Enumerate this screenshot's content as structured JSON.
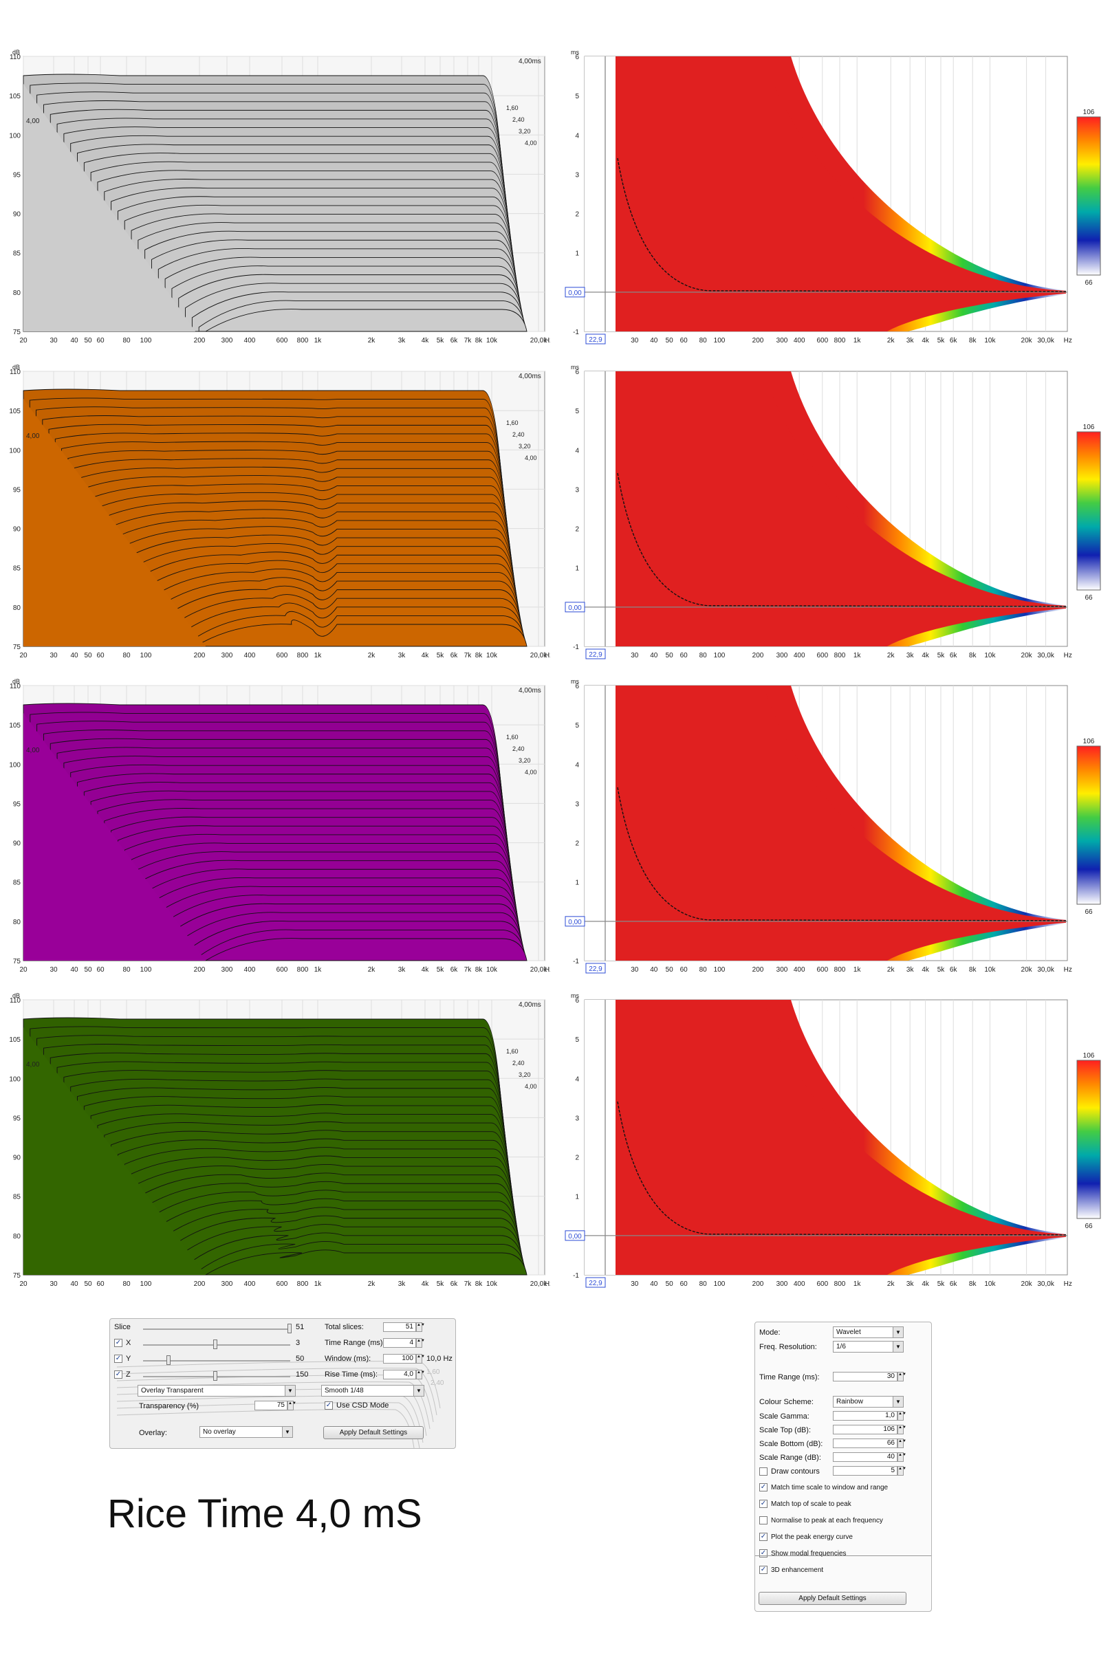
{
  "caption": "Rice Time 4,0 mS",
  "waterfall": {
    "y_unit": "dB",
    "y_ticks": [
      "110",
      "105",
      "100",
      "95",
      "90",
      "85",
      "80",
      "75"
    ],
    "x_ticks": [
      "20",
      "30",
      "40",
      "50",
      "60",
      "80",
      "100",
      "200",
      "300",
      "400",
      "600",
      "800",
      "1k",
      "2k",
      "3k",
      "4k",
      "5k",
      "6k",
      "7k",
      "8k",
      "10k",
      "20,0k",
      "Hz"
    ],
    "time_label": "4,00ms",
    "slice_labels": [
      "1,60",
      "2,40",
      "3,20",
      "4,00"
    ],
    "left_label": "4,00"
  },
  "spectrogram": {
    "y_unit": "ms",
    "y_ticks": [
      "6",
      "5",
      "4",
      "3",
      "2",
      "1",
      "0",
      "-1"
    ],
    "x_ticks": [
      "30",
      "40",
      "50",
      "60",
      "80",
      "100",
      "200",
      "300",
      "400",
      "600",
      "800",
      "1k",
      "2k",
      "3k",
      "4k",
      "5k",
      "6k",
      "8k",
      "10k",
      "20k",
      "30,0k",
      "Hz"
    ],
    "zero_box": "0,00",
    "freq_box": "22,9",
    "scale_top": "106",
    "scale_bottom": "66"
  },
  "charts": [
    {
      "color": "#cccccc",
      "variant": "gray"
    },
    {
      "color": "#cc6600",
      "variant": "orange"
    },
    {
      "color": "#990099",
      "variant": "magenta"
    },
    {
      "color": "#336600",
      "variant": "green"
    }
  ],
  "waterfall_controls": {
    "slice_label": "Slice",
    "slice_value": "51",
    "x_label": "X",
    "x_value": "3",
    "y_label": "Y",
    "y_value": "50",
    "z_label": "Z",
    "z_value": "150",
    "total_slices_label": "Total slices:",
    "total_slices_value": "51",
    "time_range_label": "Time Range (ms):",
    "time_range_value": "4",
    "window_label": "Window (ms):",
    "window_value": "100",
    "window_res": "10,0 Hz",
    "rise_time_label": "Rise Time (ms):",
    "rise_time_value": "4,0",
    "overlay_mode": "Overlay Transparent",
    "smoothing": "Smooth 1/48",
    "transparency_label": "Transparency (%)",
    "transparency_value": "75",
    "use_csd_label": "Use CSD Mode",
    "overlay_label": "Overlay:",
    "overlay_value": "No overlay",
    "apply_button": "Apply Default Settings"
  },
  "spectrogram_controls": {
    "mode_label": "Mode:",
    "mode_value": "Wavelet",
    "freq_res_label": "Freq. Resolution:",
    "freq_res_value": "1/6",
    "time_range_label": "Time Range (ms):",
    "time_range_value": "30",
    "colour_scheme_label": "Colour Scheme:",
    "colour_scheme_value": "Rainbow",
    "scale_gamma_label": "Scale Gamma:",
    "scale_gamma_value": "1,0",
    "scale_top_label": "Scale Top (dB):",
    "scale_top_value": "106",
    "scale_bottom_label": "Scale Bottom (dB):",
    "scale_bottom_value": "66",
    "scale_range_label": "Scale Range (dB):",
    "scale_range_value": "40",
    "draw_contours_label": "Draw contours",
    "draw_contours_value": "5",
    "checks": [
      {
        "label": "Match time scale to window and range",
        "checked": true
      },
      {
        "label": "Match top of scale to peak",
        "checked": true
      },
      {
        "label": "Normalise to peak at each frequency",
        "checked": false
      },
      {
        "label": "Plot the peak energy curve",
        "checked": true
      },
      {
        "label": "Show modal frequencies",
        "checked": true
      },
      {
        "label": "3D enhancement",
        "checked": true
      }
    ],
    "apply_button": "Apply Default Settings"
  }
}
